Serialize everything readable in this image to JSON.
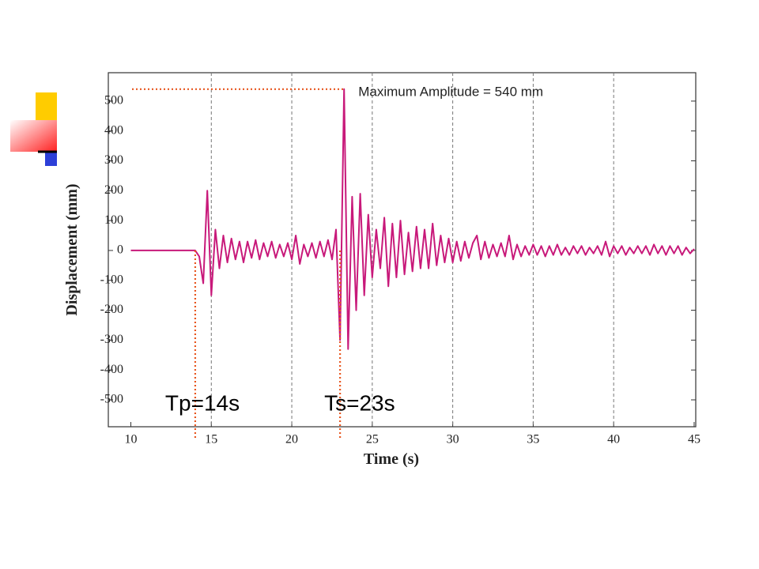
{
  "chart_data": {
    "type": "line",
    "xlabel": "Time (s)",
    "ylabel": "Displacement (mm)",
    "x": [
      10,
      14,
      14.25,
      14.5,
      14.75,
      15,
      15.25,
      15.5,
      15.75,
      16,
      16.25,
      16.5,
      16.75,
      17,
      17.25,
      17.5,
      17.75,
      18,
      18.25,
      18.5,
      18.75,
      19,
      19.25,
      19.5,
      19.75,
      20,
      20.25,
      20.5,
      20.75,
      21,
      21.25,
      21.5,
      21.75,
      22,
      22.25,
      22.5,
      22.75,
      23,
      23.25,
      23.5,
      23.75,
      24,
      24.25,
      24.5,
      24.75,
      25,
      25.25,
      25.5,
      25.75,
      26,
      26.25,
      26.5,
      26.75,
      27,
      27.25,
      27.5,
      27.75,
      28,
      28.25,
      28.5,
      28.75,
      29,
      29.25,
      29.5,
      29.75,
      30,
      30.25,
      30.5,
      30.75,
      31,
      31.25,
      31.5,
      31.75,
      32,
      32.25,
      32.5,
      32.75,
      33,
      33.25,
      33.5,
      33.75,
      34,
      34.25,
      34.5,
      34.75,
      35,
      35.25,
      35.5,
      35.75,
      36,
      36.25,
      36.5,
      36.75,
      37,
      37.25,
      37.5,
      37.75,
      38,
      38.25,
      38.5,
      38.75,
      39,
      39.25,
      39.5,
      39.75,
      40,
      40.25,
      40.5,
      40.75,
      41,
      41.25,
      41.5,
      41.75,
      42,
      42.25,
      42.5,
      42.75,
      43,
      43.25,
      43.5,
      43.75,
      44,
      44.25,
      44.5,
      44.75,
      45
    ],
    "series": [
      {
        "color": "#c8197a",
        "values": [
          0,
          0,
          -20,
          -110,
          200,
          -150,
          70,
          -60,
          50,
          -40,
          40,
          -30,
          30,
          -40,
          30,
          -25,
          35,
          -30,
          25,
          -20,
          30,
          -25,
          20,
          -20,
          25,
          -30,
          50,
          -45,
          20,
          -20,
          25,
          -25,
          30,
          -20,
          35,
          -30,
          70,
          -300,
          540,
          -330,
          180,
          -200,
          190,
          -150,
          120,
          -90,
          70,
          -60,
          110,
          -120,
          90,
          -90,
          100,
          -80,
          60,
          -70,
          80,
          -60,
          70,
          -60,
          90,
          -50,
          50,
          -40,
          40,
          -40,
          30,
          -35,
          30,
          -25,
          25,
          50,
          -30,
          30,
          -25,
          20,
          -20,
          25,
          -20,
          50,
          -30,
          20,
          -20,
          15,
          -15,
          20,
          -15,
          15,
          -20,
          15,
          -15,
          20,
          -15,
          10,
          -15,
          15,
          -10,
          15,
          -15,
          10,
          -10,
          15,
          -15,
          30,
          -20,
          15,
          -10,
          15,
          -15,
          10,
          -10,
          15,
          -10,
          15,
          -15,
          20,
          -10,
          15,
          -15,
          15,
          -10,
          15,
          -15,
          10,
          -10,
          5
        ]
      }
    ],
    "xlim": [
      8.6,
      45.1
    ],
    "ylim": [
      -590,
      595
    ],
    "xticks": [
      10,
      15,
      20,
      25,
      30,
      35,
      40,
      45
    ],
    "yticks": [
      -500,
      -400,
      -300,
      -200,
      -100,
      0,
      100,
      200,
      300,
      400,
      500
    ],
    "grid": "x",
    "marker_color": "#e8561f",
    "markers": [
      {
        "label": "Tp=14s",
        "x": 14
      },
      {
        "label": "Ts=23s",
        "x": 23
      }
    ],
    "max_amplitude": {
      "label": "Maximum Amplitude = 540 mm",
      "x": 23.3,
      "value": 540
    }
  }
}
